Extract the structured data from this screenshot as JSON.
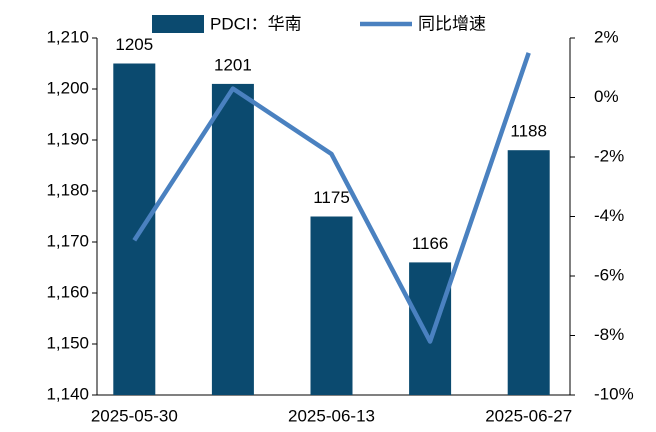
{
  "chart_data": {
    "type": "bar-line",
    "categories": [
      "2025-05-30",
      null,
      "2025-06-13",
      null,
      "2025-06-27"
    ],
    "series": [
      {
        "name": "PDCI：华南",
        "type": "bar",
        "color": "#0b4a6f",
        "values": [
          1205,
          1201,
          1175,
          1166,
          1188
        ]
      },
      {
        "name": "同比增速",
        "type": "line",
        "axis": "y2",
        "color": "#4a81c0",
        "values": [
          -4.8,
          0.3,
          -1.9,
          -8.2,
          1.5
        ]
      }
    ],
    "ylim": [
      1140,
      1210
    ],
    "yticks": [
      {
        "value": 1140,
        "label": "1,140"
      },
      {
        "value": 1150,
        "label": "1,150"
      },
      {
        "value": 1160,
        "label": "1,160"
      },
      {
        "value": 1170,
        "label": "1,170"
      },
      {
        "value": 1180,
        "label": "1,180"
      },
      {
        "value": 1190,
        "label": "1,190"
      },
      {
        "value": 1200,
        "label": "1,200"
      },
      {
        "value": 1210,
        "label": "1,210"
      }
    ],
    "y2lim": [
      -10,
      2
    ],
    "y2ticks": [
      {
        "value": -10,
        "label": "-10%"
      },
      {
        "value": -8,
        "label": "-8%"
      },
      {
        "value": -6,
        "label": "-6%"
      },
      {
        "value": -4,
        "label": "-4%"
      },
      {
        "value": -2,
        "label": "-2%"
      },
      {
        "value": 0,
        "label": "0%"
      },
      {
        "value": 2,
        "label": "2%"
      }
    ],
    "legend": "top"
  }
}
